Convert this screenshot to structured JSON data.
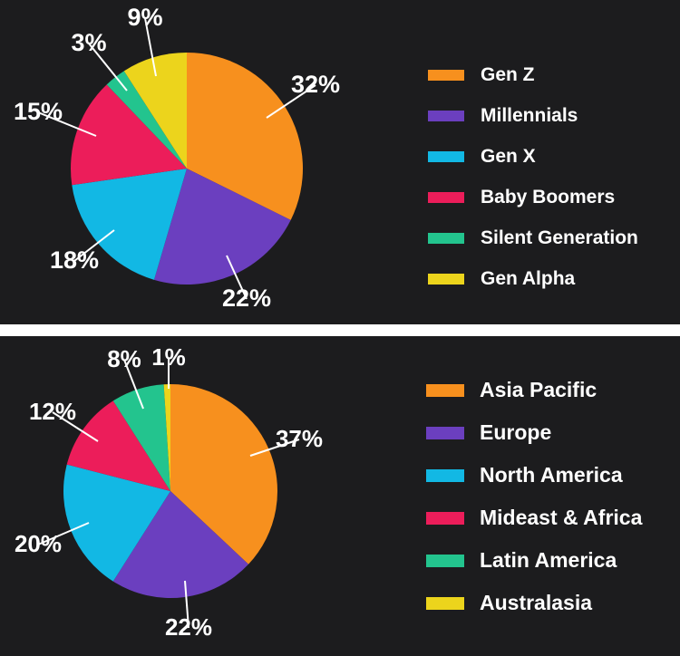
{
  "chart_data": [
    {
      "type": "pie",
      "series_name": "",
      "labels": [
        "Gen Z",
        "Millennials",
        "Gen X",
        "Baby Boomers",
        "Silent Generation",
        "Gen Alpha"
      ],
      "values": [
        32,
        22,
        18,
        15,
        3,
        9
      ],
      "value_labels": [
        "32%",
        "22%",
        "18%",
        "15%",
        "3%",
        "9%"
      ],
      "colors": [
        "#f7901e",
        "#6b3fbf",
        "#12b8e4",
        "#ec1d5a",
        "#23c48e",
        "#ecd41c"
      ],
      "legend_position": "right"
    },
    {
      "type": "pie",
      "series_name": "",
      "labels": [
        "Asia Pacific",
        "Europe",
        "North America",
        "Mideast & Africa",
        "Latin America",
        "Australasia"
      ],
      "values": [
        37,
        22,
        20,
        12,
        8,
        1
      ],
      "value_labels": [
        "37%",
        "22%",
        "20%",
        "12%",
        "8%",
        "1%"
      ],
      "colors": [
        "#f7901e",
        "#6b3fbf",
        "#12b8e4",
        "#ec1d5a",
        "#23c48e",
        "#ecd41c"
      ],
      "legend_position": "right"
    }
  ]
}
